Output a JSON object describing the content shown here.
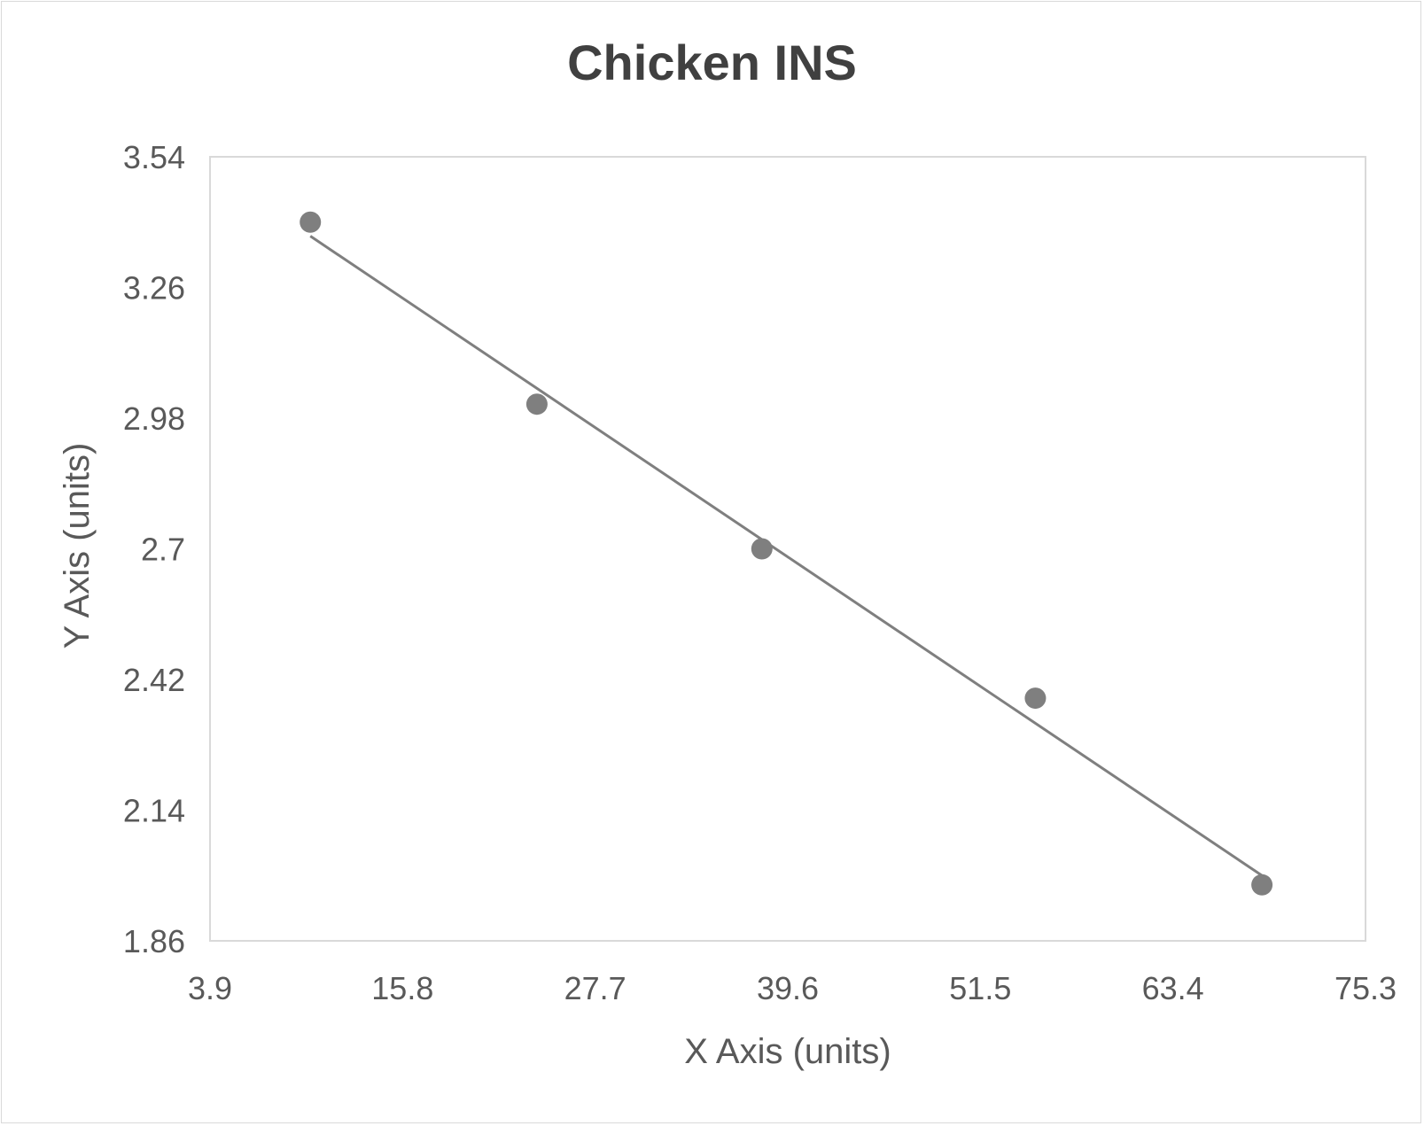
{
  "chart_data": {
    "type": "scatter",
    "title": "Chicken INS",
    "xlabel": "X Axis (units)",
    "ylabel": "Y Axis (units)",
    "xlim": [
      3.9,
      75.3
    ],
    "ylim": [
      1.86,
      3.54
    ],
    "x_ticks": [
      "3.9",
      "15.8",
      "27.7",
      "39.6",
      "51.5",
      "63.4",
      "75.3"
    ],
    "y_ticks": [
      "3.54",
      "3.26",
      "2.98",
      "2.7",
      "2.42",
      "2.14",
      "1.86"
    ],
    "grid": false,
    "legend": null,
    "series": [
      {
        "name": "Chicken INS",
        "x": [
          10.1,
          24.1,
          38.0,
          54.9,
          68.9
        ],
        "y": [
          3.4,
          3.01,
          2.7,
          2.38,
          1.98
        ],
        "marker_color": "#7f7f7f"
      }
    ],
    "trendline": {
      "type": "linear",
      "x_start": 10.1,
      "y_start": 3.37,
      "x_end": 68.9,
      "y_end": 2.0,
      "color": "#7f7f7f"
    }
  }
}
